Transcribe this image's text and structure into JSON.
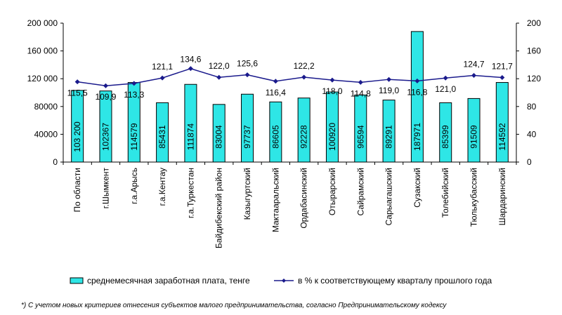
{
  "chart_data": {
    "type": "bar+line",
    "categories": [
      "По области",
      "г.Шымкент",
      "г.а.Арысь",
      "г.а.Кентау",
      "г.а.Туркестан",
      "Байдибекский район",
      "Казыгуртский",
      "Мактааральский",
      "Ордабасинский",
      "Отырарский",
      "Сайрамский",
      "Сарыагашский",
      "Сузакский",
      "Толебийский",
      "Тюлькубасский",
      "Шардаринский"
    ],
    "series": [
      {
        "name": "среднемесячная заработная плата, тенге",
        "type": "bar",
        "axis": "left",
        "color": "#2ee6e6",
        "values": [
          103200,
          102367,
          114579,
          85431,
          111874,
          83004,
          97737,
          86605,
          92228,
          100920,
          96594,
          89291,
          187971,
          85399,
          91509,
          114592
        ],
        "labels": [
          "103 200",
          "102367",
          "114579",
          "85431",
          "111874",
          "83004",
          "97737",
          "86605",
          "92228",
          "100920",
          "96594",
          "89291",
          "187971",
          "85399",
          "91509",
          "114592"
        ]
      },
      {
        "name": "в % к соответствующему кварталу прошлого года",
        "type": "line",
        "axis": "right",
        "color": "#1a1a8c",
        "values": [
          115.5,
          109.9,
          113.3,
          121.1,
          134.6,
          122.0,
          125.6,
          116.4,
          122.2,
          118.0,
          114.8,
          119.0,
          116.8,
          121.0,
          124.7,
          121.7
        ],
        "labels": [
          "115,5",
          "109,9",
          "113,3",
          "121,1",
          "134,6",
          "122,0",
          "125,6",
          "116,4",
          "122,2",
          "118,0",
          "114,8",
          "119,0",
          "116,8",
          "121,0",
          "124,7",
          "121,7"
        ]
      }
    ],
    "y_left": {
      "min": 0,
      "max": 200000,
      "ticks": [
        0,
        40000,
        80000,
        120000,
        160000,
        200000
      ],
      "tick_labels": [
        "0",
        "40000",
        "80000",
        "120 000",
        "160 000",
        "200 000"
      ]
    },
    "y_right": {
      "min": 0,
      "max": 200,
      "ticks": [
        0,
        40,
        80,
        120,
        160,
        200
      ],
      "tick_labels": [
        "0",
        "40",
        "80",
        "120",
        "160",
        "200"
      ]
    },
    "legend": {
      "position": "bottom"
    },
    "grid": false
  },
  "footnote": "*) С учетом новых критериев отнесения субъектов малого предпринимательства, согласно Предпринимательскому кодексу"
}
